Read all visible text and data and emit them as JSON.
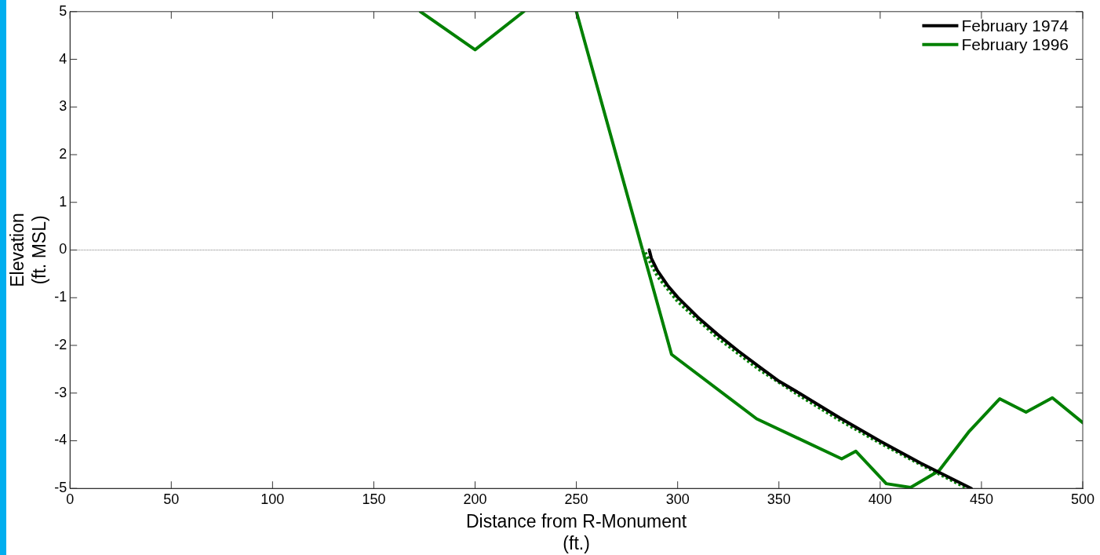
{
  "chart_data": {
    "type": "line",
    "xlabel": "Distance from R-Monument\n(ft.)",
    "ylabel": "Elevation\n(ft. MSL)",
    "xlim": [
      0,
      500
    ],
    "xticks": [
      0,
      50,
      100,
      150,
      200,
      250,
      300,
      350,
      400,
      450,
      500
    ],
    "ylim": [
      -5,
      5
    ],
    "yticks": [
      -5,
      -4,
      -3,
      -2,
      -1,
      0,
      1,
      2,
      3,
      4,
      5
    ],
    "grid": false,
    "legend": "top right",
    "marker": "none",
    "ref_lines": [
      {
        "axis": "y",
        "value": 0,
        "color": "#808080",
        "line_style": "dotted"
      }
    ],
    "series": [
      {
        "name": "February 1974",
        "color": "#000000",
        "line_style": "solid",
        "x": [
          286,
          287,
          290,
          295,
          300,
          310,
          320,
          330,
          340,
          350,
          360,
          380,
          400,
          420,
          445
        ],
        "values": [
          0,
          -0.17,
          -0.43,
          -0.74,
          -0.99,
          -1.41,
          -1.78,
          -2.12,
          -2.44,
          -2.75,
          -3.0,
          -3.52,
          -4.01,
          -4.47,
          -5.0
        ]
      },
      {
        "name": "February 1996",
        "color": "#008000",
        "line_style": "solid",
        "x": [
          173,
          200,
          224,
          237,
          250,
          297,
          339,
          381,
          388,
          403,
          415,
          429,
          444,
          459,
          472,
          485,
          500
        ],
        "values": [
          5,
          4.2,
          5,
          null,
          5,
          -2.19,
          -3.54,
          -4.38,
          -4.22,
          -4.9,
          -4.98,
          -4.63,
          -3.8,
          -3.12,
          -3.4,
          -3.1,
          -3.62
        ]
      },
      {
        "color": "#008000",
        "line_style": "dotted",
        "x": [
          284,
          290,
          300,
          320,
          340,
          360,
          380,
          400,
          420,
          443
        ],
        "values": [
          -0.05,
          -0.55,
          -1.08,
          -1.85,
          -2.5,
          -3.05,
          -3.57,
          -4.05,
          -4.5,
          -5.0
        ]
      }
    ]
  }
}
